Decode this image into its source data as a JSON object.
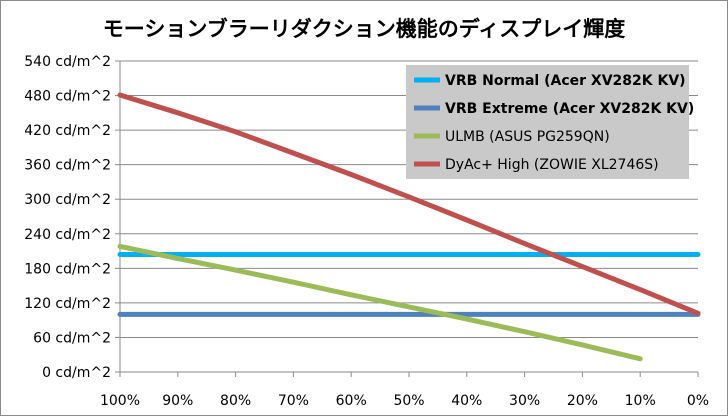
{
  "chart_data": {
    "type": "line",
    "title": "モーションブラーリダクション機能のディスプレイ輝度",
    "x": [
      "100%",
      "90%",
      "80%",
      "70%",
      "60%",
      "50%",
      "40%",
      "30%",
      "20%",
      "10%",
      "0%"
    ],
    "x_numeric": [
      100,
      90,
      80,
      70,
      60,
      50,
      40,
      30,
      20,
      10,
      0
    ],
    "xlim": [
      100,
      0
    ],
    "y_ticks": [
      "0 cd/m^2",
      "60 cd/m^2",
      "120 cd/m^2",
      "180 cd/m^2",
      "240 cd/m^2",
      "300 cd/m^2",
      "360 cd/m^2",
      "420 cd/m^2",
      "480 cd/m^2",
      "540 cd/m^2"
    ],
    "ylim": [
      0,
      540
    ],
    "grid": "horizontal",
    "legend_position": "top-right",
    "series": [
      {
        "name": "VRB Normal (Acer XV282K KV)",
        "color": "#00b0f0",
        "bold": true,
        "points": [
          [
            100,
            204
          ],
          [
            0,
            204
          ]
        ]
      },
      {
        "name": "VRB Extreme (Acer XV282K KV)",
        "color": "#4f81bd",
        "bold": true,
        "points": [
          [
            100,
            100
          ],
          [
            0,
            100
          ]
        ]
      },
      {
        "name": "ULMB (ASUS PG259QN)",
        "color": "#9bbb59",
        "bold": false,
        "points": [
          [
            100,
            218
          ],
          [
            90,
            197
          ],
          [
            80,
            177
          ],
          [
            70,
            156
          ],
          [
            60,
            134
          ],
          [
            50,
            113
          ],
          [
            40,
            92
          ],
          [
            30,
            70
          ],
          [
            20,
            47
          ],
          [
            10,
            23
          ]
        ]
      },
      {
        "name": "DyAc+ High (ZOWIE XL2746S)",
        "color": "#c0504d",
        "bold": false,
        "points": [
          [
            100,
            481
          ],
          [
            90,
            450
          ],
          [
            80,
            417
          ],
          [
            70,
            380
          ],
          [
            60,
            343
          ],
          [
            50,
            304
          ],
          [
            40,
            264
          ],
          [
            30,
            223
          ],
          [
            20,
            183
          ],
          [
            10,
            143
          ],
          [
            0,
            102
          ]
        ]
      }
    ]
  }
}
